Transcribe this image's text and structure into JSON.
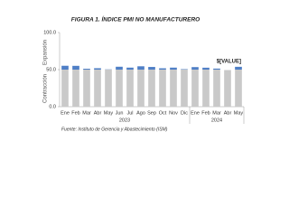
{
  "chart_data": {
    "type": "stacked_bar",
    "title": "FIGURA 1. ÍNDICE PMI NO MANUFACTURERO",
    "categories": [
      "Ene",
      "Feb",
      "Mar",
      "Abr",
      "May",
      "Jun",
      "Jul",
      "Ago",
      "Sep",
      "Oct",
      "Nov",
      "Dic",
      "Ene",
      "Feb",
      "Mar",
      "Abr",
      "May"
    ],
    "groups": [
      {
        "label": "2023",
        "count": 12
      },
      {
        "label": "2024",
        "count": 5
      }
    ],
    "series": [
      {
        "color": "#c9c9c9",
        "values": [
          50,
          50,
          50,
          50,
          50,
          50,
          50,
          50,
          50,
          50,
          50,
          50,
          50,
          50,
          50,
          49.4,
          50
        ]
      },
      {
        "color": "#4f7fc6",
        "values": [
          5.2,
          5.1,
          1.2,
          1.9,
          0.3,
          3.9,
          2.7,
          4.5,
          3.6,
          1.8,
          2.7,
          0.6,
          3.4,
          2.6,
          1.4,
          0,
          3.8
        ]
      }
    ],
    "ylim": [
      0,
      100
    ],
    "yticks": [
      {
        "value": 0,
        "label": "0.0"
      },
      {
        "value": 50,
        "label": "50.0"
      },
      {
        "value": 100,
        "label": "100.0"
      }
    ],
    "y_upper_label": "Expansión",
    "y_lower_label": "Contracción",
    "annotation": "$[VALUE]",
    "source": "Fuente: Instituto de Gerencia y Abastecimiento (ISM)"
  }
}
